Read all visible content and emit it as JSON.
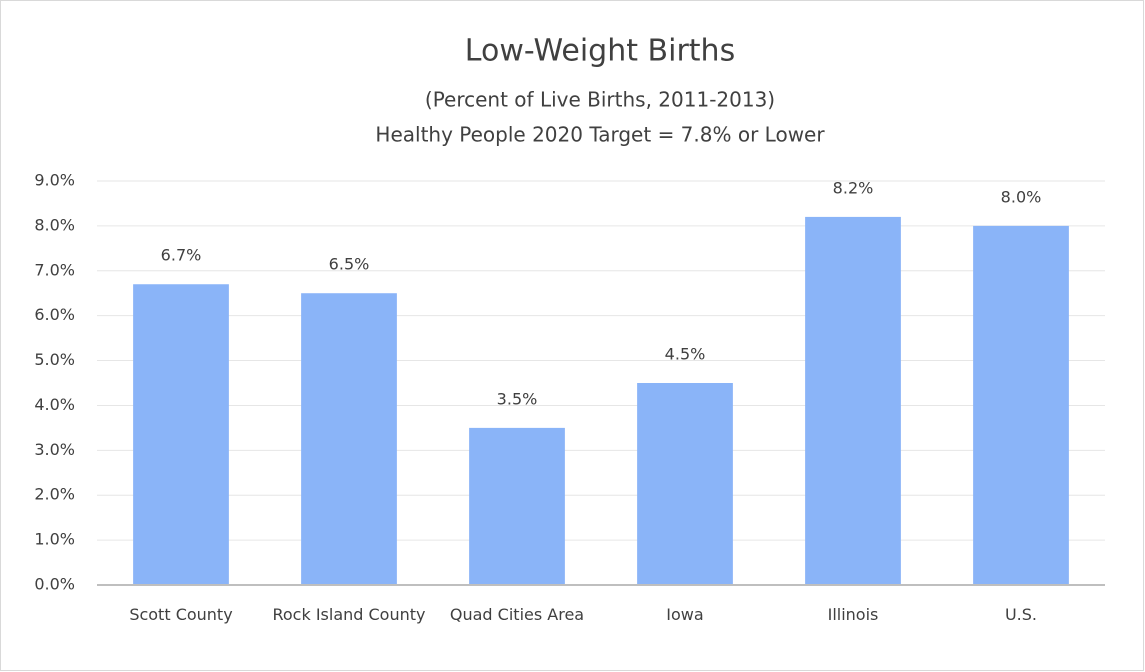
{
  "chart_data": {
    "type": "bar",
    "title": "Low-Weight Births",
    "subtitle": [
      "(Percent of Live Births, 2011-2013)",
      "Healthy People 2020 Target = 7.8% or Lower"
    ],
    "categories": [
      "Scott County",
      "Rock Island County",
      "Quad Cities Area",
      "Iowa",
      "Illinois",
      "U.S."
    ],
    "values": [
      6.7,
      6.5,
      3.5,
      4.5,
      8.2,
      8.0
    ],
    "value_labels": [
      "6.7%",
      "6.5%",
      "3.5%",
      "4.5%",
      "8.2%",
      "8.0%"
    ],
    "color": "#8ab4f8",
    "ylim": [
      0,
      9
    ],
    "yticks": [
      {
        "value": 0,
        "label": "0.0%"
      },
      {
        "value": 1,
        "label": "1.0%"
      },
      {
        "value": 2,
        "label": "2.0%"
      },
      {
        "value": 3,
        "label": "3.0%"
      },
      {
        "value": 4,
        "label": "4.0%"
      },
      {
        "value": 5,
        "label": "5.0%"
      },
      {
        "value": 6,
        "label": "6.0%"
      },
      {
        "value": 7,
        "label": "7.0%"
      },
      {
        "value": 8,
        "label": "8.0%"
      },
      {
        "value": 9,
        "label": "9.0%"
      }
    ],
    "grid": true
  }
}
